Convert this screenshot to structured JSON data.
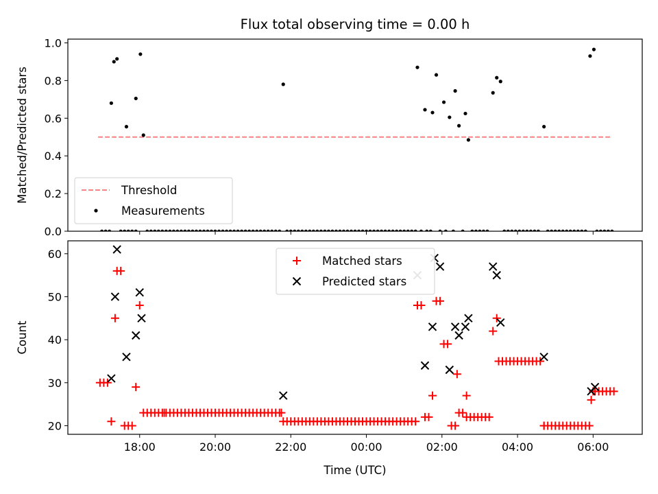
{
  "chart_data": {
    "title": "Flux total observing time = 0.00 h",
    "x_axis": {
      "label": "Time (UTC)",
      "unit": "hours since 00:00 UTC (continuous across midnight)",
      "range": [
        -7.9,
        7.3
      ],
      "ticks": [
        {
          "value": -6,
          "label": "18:00"
        },
        {
          "value": -4,
          "label": "20:00"
        },
        {
          "value": -2,
          "label": "22:00"
        },
        {
          "value": 0,
          "label": "00:00"
        },
        {
          "value": 2,
          "label": "02:00"
        },
        {
          "value": 4,
          "label": "04:00"
        },
        {
          "value": 6,
          "label": "06:00"
        }
      ]
    },
    "panels": [
      {
        "type": "scatter",
        "ylabel": "Matched/Predicted stars",
        "ylim": [
          0,
          1.02
        ],
        "yticks": [
          {
            "value": 0,
            "label": "0.0"
          },
          {
            "value": 0.2,
            "label": "0.2"
          },
          {
            "value": 0.4,
            "label": "0.4"
          },
          {
            "value": 0.6,
            "label": "0.6"
          },
          {
            "value": 0.8,
            "label": "0.8"
          },
          {
            "value": 1.0,
            "label": "1.0"
          }
        ],
        "legend_position": "lower-left",
        "threshold": {
          "name": "Threshold",
          "value": 0.5,
          "x_range": [
            -7.1,
            6.45
          ],
          "color": "#ff8080",
          "style": "dashed"
        },
        "measurements": {
          "name": "Measurements",
          "color": "#000000",
          "points": [
            [
              -6.75,
              0.68
            ],
            [
              -6.68,
              0.9
            ],
            [
              -6.6,
              0.915
            ],
            [
              -6.35,
              0.555
            ],
            [
              -6.1,
              0.705
            ],
            [
              -5.98,
              0.94
            ],
            [
              -5.9,
              0.51
            ],
            [
              -2.2,
              0.78
            ],
            [
              1.35,
              0.87
            ],
            [
              1.55,
              0.645
            ],
            [
              1.75,
              0.63
            ],
            [
              1.85,
              0.83
            ],
            [
              2.05,
              0.685
            ],
            [
              2.2,
              0.605
            ],
            [
              2.35,
              0.745
            ],
            [
              2.45,
              0.56
            ],
            [
              2.62,
              0.625
            ],
            [
              2.7,
              0.485
            ],
            [
              3.35,
              0.735
            ],
            [
              3.45,
              0.815
            ],
            [
              3.55,
              0.795
            ],
            [
              4.7,
              0.555
            ],
            [
              5.92,
              0.93
            ],
            [
              6.02,
              0.965
            ]
          ],
          "zero_segments": [
            [
              -7.0,
              -6.8
            ],
            [
              -6.5,
              -6.4
            ],
            [
              -6.3,
              -6.1
            ],
            [
              -5.8,
              -2.3
            ],
            [
              -2.1,
              1.3
            ],
            [
              1.45,
              1.5
            ],
            [
              1.6,
              1.75
            ],
            [
              1.95,
              2.0
            ],
            [
              2.1,
              2.15
            ],
            [
              2.3,
              2.35
            ],
            [
              2.55,
              2.6
            ],
            [
              2.8,
              3.25
            ],
            [
              3.65,
              4.6
            ],
            [
              4.8,
              5.85
            ],
            [
              6.1,
              6.55
            ]
          ],
          "zero_step": 0.1
        }
      },
      {
        "type": "scatter",
        "ylabel": "Count",
        "ylim": [
          18,
          63
        ],
        "yticks": [
          {
            "value": 20,
            "label": "20"
          },
          {
            "value": 30,
            "label": "30"
          },
          {
            "value": 40,
            "label": "40"
          },
          {
            "value": 50,
            "label": "50"
          },
          {
            "value": 60,
            "label": "60"
          }
        ],
        "legend_position": "upper-center",
        "series": [
          {
            "name": "Matched stars",
            "marker": "plus",
            "color": "#ff0000",
            "points": [
              [
                -7.05,
                30
              ],
              [
                -6.95,
                30
              ],
              [
                -6.85,
                30
              ],
              [
                -6.75,
                21
              ],
              [
                -6.65,
                45
              ],
              [
                -6.6,
                56
              ],
              [
                -6.5,
                56
              ],
              [
                -6.4,
                20
              ],
              [
                -6.3,
                20
              ],
              [
                -6.2,
                20
              ],
              [
                -6.1,
                29
              ],
              [
                -6.0,
                48
              ],
              [
                -5.35,
                23
              ],
              [
                -2.25,
                23
              ],
              [
                1.35,
                48
              ],
              [
                1.45,
                48
              ],
              [
                1.55,
                22
              ],
              [
                1.65,
                22
              ],
              [
                1.75,
                27
              ],
              [
                1.85,
                49
              ],
              [
                1.95,
                49
              ],
              [
                2.05,
                39
              ],
              [
                2.15,
                39
              ],
              [
                2.25,
                20
              ],
              [
                2.35,
                20
              ],
              [
                2.4,
                32
              ],
              [
                2.45,
                23
              ],
              [
                2.55,
                23
              ],
              [
                2.65,
                27
              ],
              [
                3.35,
                42
              ],
              [
                3.45,
                45
              ],
              [
                4.7,
                20
              ],
              [
                5.95,
                26
              ],
              [
                6.0,
                28
              ]
            ],
            "runs": [
              {
                "from": -5.9,
                "to": -2.25,
                "value": 23,
                "step": 0.1
              },
              {
                "from": -2.2,
                "to": 1.3,
                "value": 21,
                "step": 0.1
              },
              {
                "from": 2.65,
                "to": 3.3,
                "value": 22,
                "step": 0.1
              },
              {
                "from": 3.5,
                "to": 4.6,
                "value": 35,
                "step": 0.1
              },
              {
                "from": 4.7,
                "to": 5.9,
                "value": 20,
                "step": 0.1
              },
              {
                "from": 6.05,
                "to": 6.55,
                "value": 28,
                "step": 0.1
              }
            ]
          },
          {
            "name": "Predicted stars",
            "marker": "x",
            "color": "#000000",
            "points": [
              [
                -6.75,
                31
              ],
              [
                -6.65,
                50
              ],
              [
                -6.6,
                61
              ],
              [
                -6.35,
                36
              ],
              [
                -6.1,
                41
              ],
              [
                -6.0,
                51
              ],
              [
                -5.95,
                45
              ],
              [
                -2.2,
                27
              ],
              [
                1.35,
                55
              ],
              [
                1.55,
                34
              ],
              [
                1.75,
                43
              ],
              [
                1.8,
                59
              ],
              [
                1.95,
                57
              ],
              [
                2.2,
                33
              ],
              [
                2.35,
                43
              ],
              [
                2.45,
                41
              ],
              [
                2.62,
                43
              ],
              [
                2.7,
                45
              ],
              [
                3.35,
                57
              ],
              [
                3.45,
                55
              ],
              [
                3.55,
                44
              ],
              [
                4.7,
                36
              ],
              [
                5.95,
                28
              ],
              [
                6.05,
                29
              ]
            ]
          }
        ]
      }
    ]
  }
}
